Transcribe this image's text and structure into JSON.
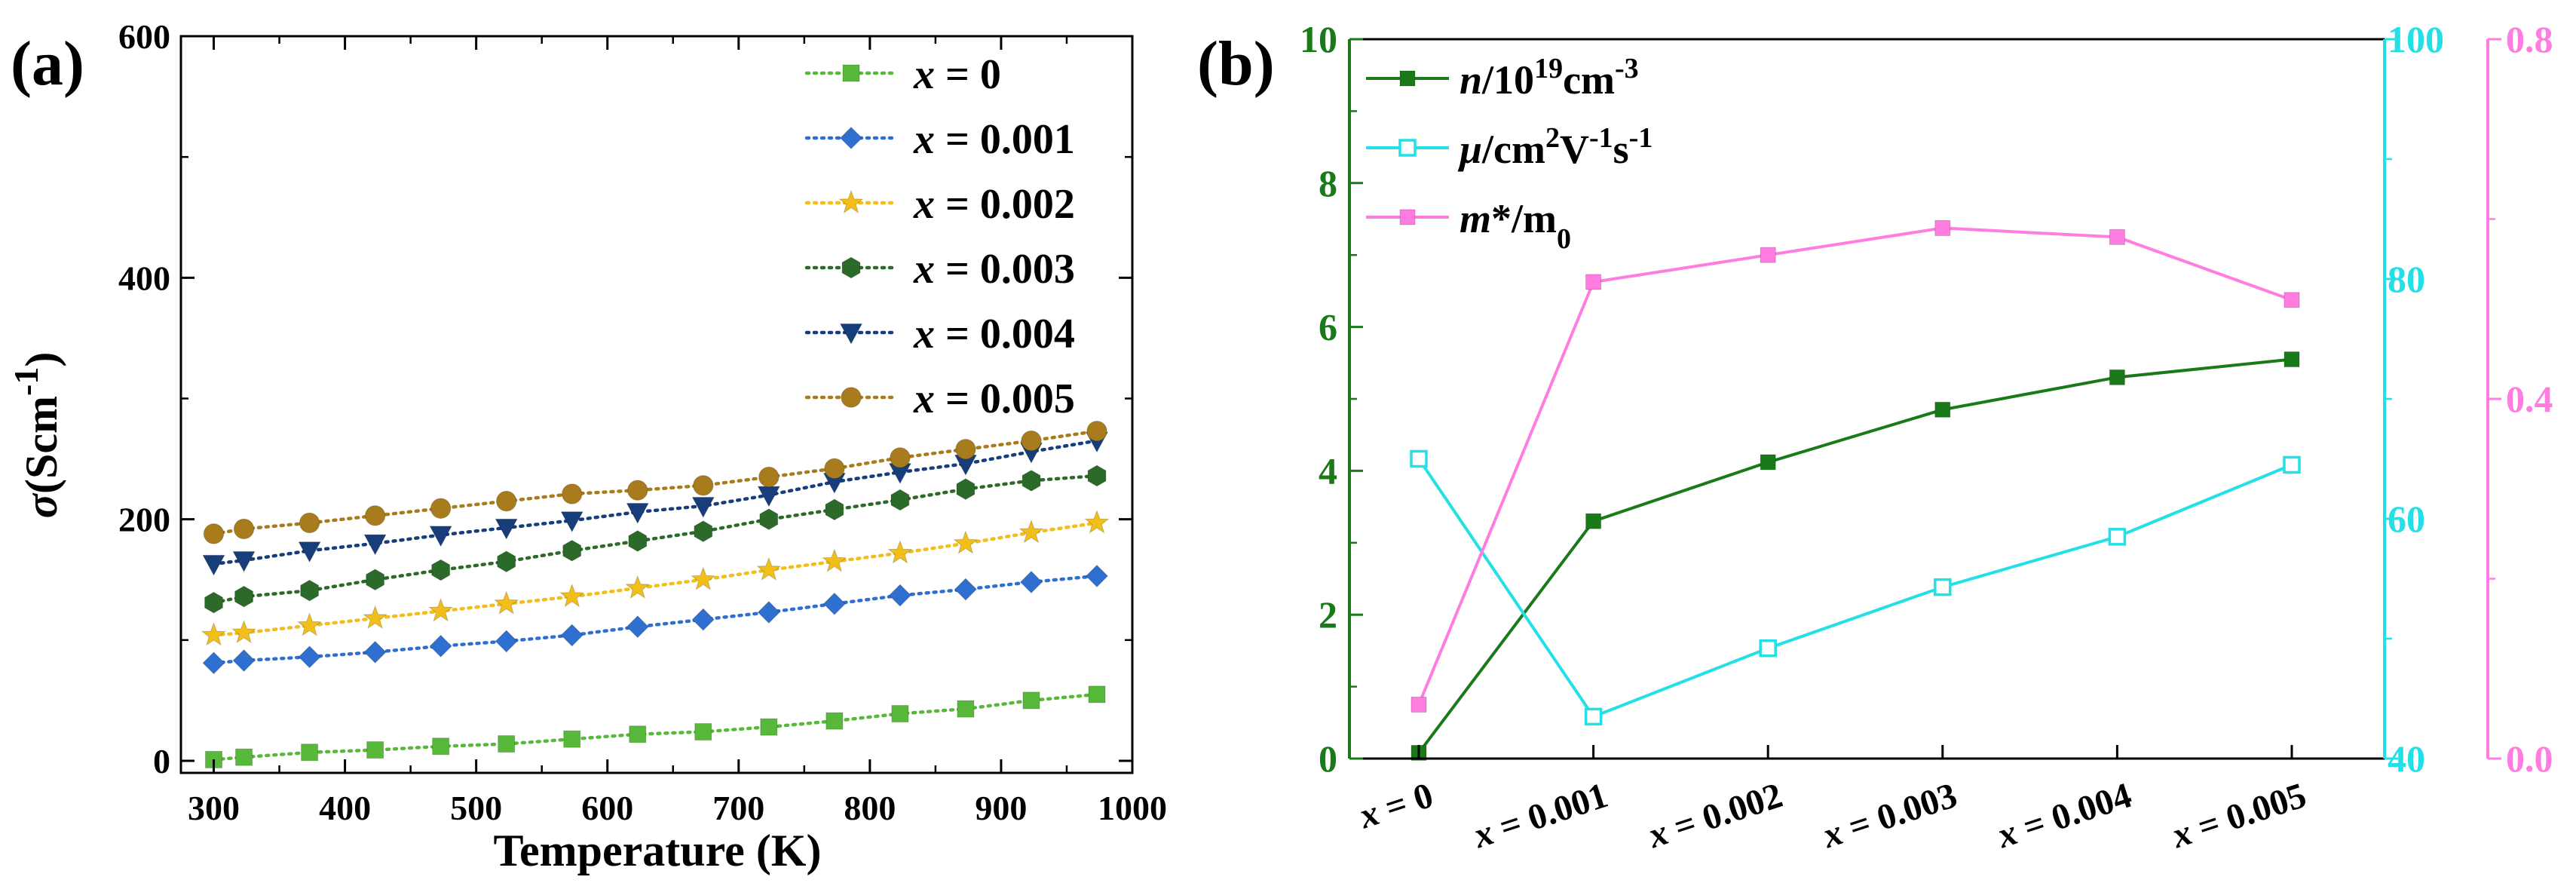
{
  "panel_a_label": "(a)",
  "panel_b_label": "(b)",
  "chart_data": [
    {
      "type": "line",
      "panel": "(a)",
      "xlabel": "Temperature (K)",
      "ylabel_symbol": "σ",
      "ylabel_unit": "(Scm",
      "ylabel_exp": "-1",
      "ylabel_close": ")",
      "xlim": [
        275,
        1000
      ],
      "ylim": [
        -10,
        600
      ],
      "xticks": [
        300,
        400,
        500,
        600,
        700,
        800,
        900,
        1000
      ],
      "yticks": [
        0,
        200,
        400,
        600
      ],
      "x": [
        300,
        323,
        373,
        423,
        473,
        523,
        573,
        623,
        673,
        723,
        773,
        823,
        873,
        923,
        973
      ],
      "legend_position": "top-right",
      "series": [
        {
          "name": "x = 0",
          "label_var": "x",
          "label_val": " = 0",
          "color": "#57b83a",
          "marker": "square",
          "values": [
            1,
            3,
            7,
            9,
            12,
            14,
            18,
            22,
            24,
            28,
            33,
            39,
            43,
            50,
            55
          ]
        },
        {
          "name": "x = 0.001",
          "label_var": "x",
          "label_val": " = 0.001",
          "color": "#2f6fcf",
          "marker": "diamond",
          "values": [
            81,
            83,
            86,
            90,
            95,
            99,
            104,
            111,
            117,
            123,
            130,
            137,
            142,
            148,
            153
          ]
        },
        {
          "name": "x = 0.002",
          "label_var": "x",
          "label_val": " = 0.002",
          "color": "#f2be1a",
          "marker": "star",
          "values": [
            104,
            106,
            112,
            118,
            124,
            130,
            136,
            143,
            150,
            158,
            165,
            172,
            180,
            189,
            197
          ]
        },
        {
          "name": "x = 0.003",
          "label_var": "x",
          "label_val": " = 0.003",
          "color": "#2c6a2a",
          "marker": "hexagon",
          "values": [
            131,
            136,
            141,
            150,
            158,
            165,
            174,
            182,
            190,
            200,
            208,
            216,
            225,
            232,
            236
          ]
        },
        {
          "name": "x = 0.004",
          "label_var": "x",
          "label_val": " = 0.004",
          "color": "#173d7a",
          "marker": "triangle-down",
          "values": [
            163,
            166,
            174,
            180,
            187,
            193,
            199,
            206,
            211,
            220,
            231,
            239,
            246,
            256,
            265
          ]
        },
        {
          "name": "x = 0.005",
          "label_var": "x",
          "label_val": " = 0.005",
          "color": "#a87b1c",
          "marker": "circle",
          "values": [
            188,
            192,
            197,
            203,
            209,
            215,
            221,
            224,
            228,
            235,
            242,
            251,
            258,
            265,
            273
          ]
        }
      ]
    },
    {
      "type": "line",
      "panel": "(b)",
      "categories": [
        "x = 0",
        "x = 0.001",
        "x = 0.002",
        "x = 0.003",
        "x = 0.004",
        "x = 0.005"
      ],
      "cat_var": "x",
      "cat_vals": [
        " = 0",
        " = 0.001",
        " = 0.002",
        " = 0.003",
        " = 0.004",
        " = 0.005"
      ],
      "legend_position": "top-left",
      "axes": {
        "left": {
          "ylim": [
            0,
            10
          ],
          "yticks": [
            0,
            2,
            4,
            6,
            8,
            10
          ],
          "color": "#1a7a1a"
        },
        "right1": {
          "ylim": [
            40,
            100
          ],
          "yticks": [
            40,
            60,
            80,
            100
          ],
          "color": "#22e0e6"
        },
        "right2": {
          "ylim": [
            0,
            0.8
          ],
          "yticks": [
            "0.0",
            "0.4",
            "0.8"
          ],
          "color": "#ff7de0"
        }
      },
      "series": [
        {
          "name": "n/10^19 cm^-3",
          "lab_var": "n",
          "lab_a": "/10",
          "lab_sup1": "19",
          "lab_b": "cm",
          "lab_sup2": "-3",
          "axis": "left",
          "color": "#1a7a1a",
          "marker": "square-filled",
          "values": [
            0.08,
            3.3,
            4.12,
            4.85,
            5.3,
            5.55
          ]
        },
        {
          "name": "μ/cm^2V^-1s^-1",
          "lab_var": "μ",
          "lab_a": "/cm",
          "lab_sup1": "2",
          "lab_b": "V",
          "lab_sup2": "-1",
          "lab_c": "s",
          "lab_sup3": "-1",
          "axis": "right1",
          "color": "#22e0e6",
          "marker": "square-open",
          "values": [
            65,
            43.5,
            49.2,
            54.3,
            58.5,
            64.5
          ]
        },
        {
          "name": "m*/m0",
          "lab_var": "m",
          "lab_a": "*/m",
          "lab_sub": "0",
          "axis": "right2",
          "color": "#ff7de0",
          "marker": "square-filled",
          "values": [
            0.06,
            0.53,
            0.56,
            0.59,
            0.58,
            0.51
          ]
        }
      ]
    }
  ]
}
